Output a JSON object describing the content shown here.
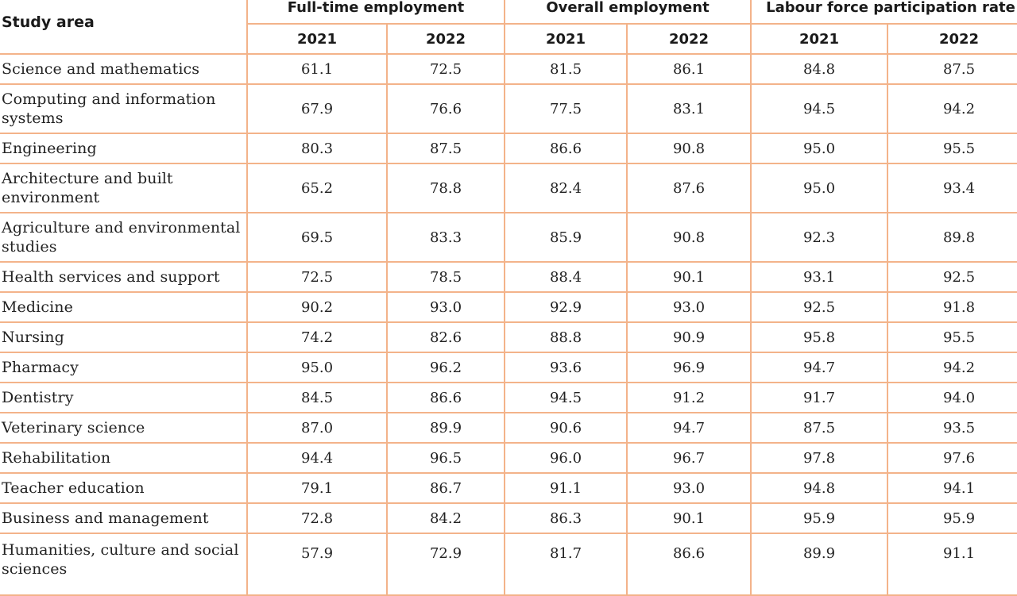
{
  "table": {
    "header": {
      "study_area": "Study area",
      "groups": [
        "Full-time employment",
        "Overall employment",
        "Labour force participation rate"
      ],
      "years": [
        "2021",
        "2022",
        "2021",
        "2022",
        "2021",
        "2022"
      ]
    },
    "rows": [
      {
        "area": "Science and mathematics",
        "values": [
          "61.1",
          "72.5",
          "81.5",
          "86.1",
          "84.8",
          "87.5"
        ]
      },
      {
        "area": "Computing and information systems",
        "values": [
          "67.9",
          "76.6",
          "77.5",
          "83.1",
          "94.5",
          "94.2"
        ]
      },
      {
        "area": "Engineering",
        "values": [
          "80.3",
          "87.5",
          "86.6",
          "90.8",
          "95.0",
          "95.5"
        ]
      },
      {
        "area": "Architecture and built environment",
        "values": [
          "65.2",
          "78.8",
          "82.4",
          "87.6",
          "95.0",
          "93.4"
        ]
      },
      {
        "area": "Agriculture and environmental studies",
        "values": [
          "69.5",
          "83.3",
          "85.9",
          "90.8",
          "92.3",
          "89.8"
        ]
      },
      {
        "area": "Health services and support",
        "values": [
          "72.5",
          "78.5",
          "88.4",
          "90.1",
          "93.1",
          "92.5"
        ]
      },
      {
        "area": "Medicine",
        "values": [
          "90.2",
          "93.0",
          "92.9",
          "93.0",
          "92.5",
          "91.8"
        ]
      },
      {
        "area": "Nursing",
        "values": [
          "74.2",
          "82.6",
          "88.8",
          "90.9",
          "95.8",
          "95.5"
        ]
      },
      {
        "area": "Pharmacy",
        "values": [
          "95.0",
          "96.2",
          "93.6",
          "96.9",
          "94.7",
          "94.2"
        ]
      },
      {
        "area": "Dentistry",
        "values": [
          "84.5",
          "86.6",
          "94.5",
          "91.2",
          "91.7",
          "94.0"
        ]
      },
      {
        "area": "Veterinary science",
        "values": [
          "87.0",
          "89.9",
          "90.6",
          "94.7",
          "87.5",
          "93.5"
        ]
      },
      {
        "area": "Rehabilitation",
        "values": [
          "94.4",
          "96.5",
          "96.0",
          "96.7",
          "97.8",
          "97.6"
        ]
      },
      {
        "area": "Teacher education",
        "values": [
          "79.1",
          "86.7",
          "91.1",
          "93.0",
          "94.8",
          "94.1"
        ]
      },
      {
        "area": "Business and management",
        "values": [
          "72.8",
          "84.2",
          "86.3",
          "90.1",
          "95.9",
          "95.9"
        ]
      },
      {
        "area": "Humanities, culture and social sciences",
        "values": [
          "57.9",
          "72.9",
          "81.7",
          "86.6",
          "89.9",
          "91.1"
        ]
      }
    ]
  },
  "colors": {
    "border": "#f3b38a",
    "text": "#222222"
  }
}
